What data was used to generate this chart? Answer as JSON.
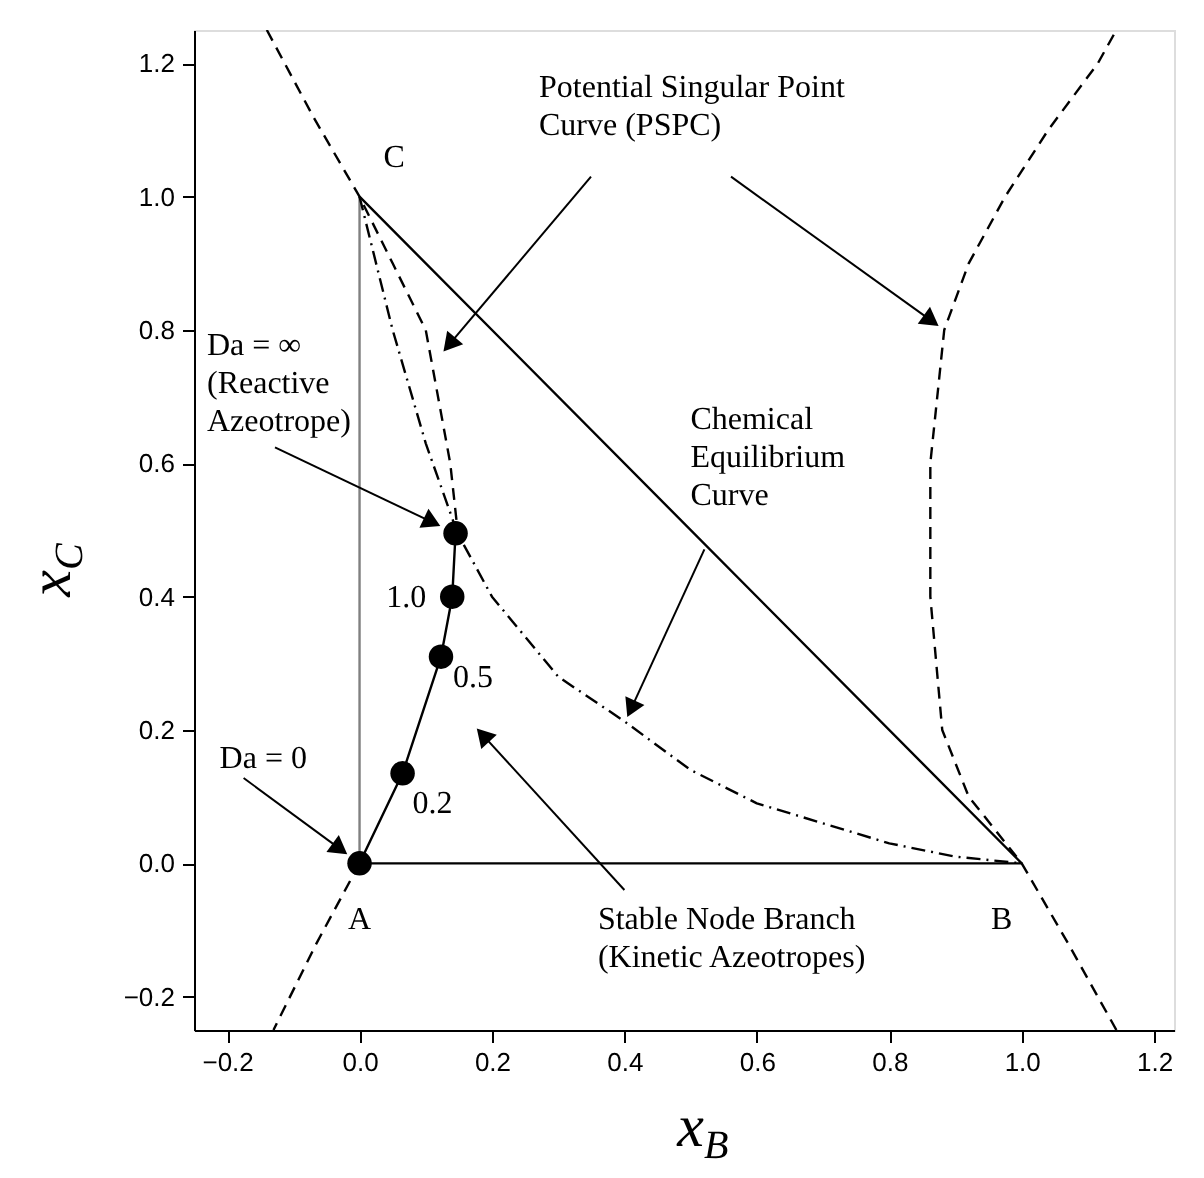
{
  "chart_data": {
    "type": "line",
    "xlabel": "x$_{B}$",
    "ylabel": "x$_{C}$",
    "xlim": [
      -0.25,
      1.23
    ],
    "ylim": [
      -0.25,
      1.25
    ],
    "xticks": [
      -0.2,
      {
        "value": 0,
        "label": "0.0"
      },
      0.2,
      0.4,
      0.6,
      0.8,
      {
        "value": 1,
        "label": "1.0"
      },
      1.2
    ],
    "yticks": [
      -0.2,
      {
        "value": 0,
        "label": "0.0"
      },
      0.2,
      0.4,
      0.6,
      0.8,
      {
        "value": 1,
        "label": "1.0"
      },
      1.2
    ],
    "grid": false,
    "series": [
      {
        "color": "#000000",
        "line_style": "solid",
        "x": [
          0,
          1,
          0
        ],
        "values": [
          0,
          0,
          1
        ]
      },
      {
        "color": "#808080",
        "line_style": "solid",
        "x": [
          0,
          0
        ],
        "values": [
          1,
          0
        ]
      },
      {
        "color": "#000000",
        "line_style": "dashed",
        "x": [
          -0.14,
          -0.07,
          0,
          0.05,
          0.1,
          0.137,
          0.148
        ],
        "values": [
          1.25,
          1.12,
          1.0,
          0.9,
          0.8,
          0.6,
          0.5
        ]
      },
      {
        "color": "#000000",
        "line_style": "dashed",
        "x": [
          0,
          -0.065,
          -0.13
        ],
        "values": [
          0,
          -0.12,
          -0.25
        ]
      },
      {
        "color": "#000000",
        "line_style": "dashed",
        "x": [
          1.143,
          1.07,
          1.0,
          0.92,
          0.88,
          0.862,
          0.862,
          0.883,
          0.92,
          0.975,
          1.04,
          1.115,
          1.143
        ],
        "values": [
          -0.25,
          -0.12,
          0,
          0.1,
          0.2,
          0.4,
          0.6,
          0.8,
          0.9,
          1.0,
          1.1,
          1.2,
          1.25
        ]
      },
      {
        "color": "#000000",
        "line_style": "dashdot",
        "x": [
          0,
          0.05,
          0.1,
          0.148,
          0.2,
          0.3,
          0.4,
          0.5,
          0.6,
          0.7,
          0.8,
          0.9,
          1.0
        ],
        "values": [
          1.0,
          0.8,
          0.63,
          0.495,
          0.4,
          0.28,
          0.213,
          0.14,
          0.09,
          0.06,
          0.03,
          0.01,
          0
        ]
      },
      {
        "color": "#000000",
        "line_style": "solid",
        "marker": "circle",
        "x": [
          0,
          0.065,
          0.123,
          0.14,
          0.145
        ],
        "values": [
          0,
          0.135,
          0.31,
          0.4,
          0.495
        ]
      }
    ],
    "annotations": [
      {
        "text": "C",
        "x": 0,
        "y": 1
      },
      {
        "text": "A",
        "x": 0,
        "y": 0
      },
      {
        "text": "B",
        "x": 1,
        "y": 0
      },
      {
        "text": "Potential Singular Point\nCurve (PSPC)",
        "x": 0.12,
        "y": 0.76
      },
      {
        "text": "Da = ∞\n(Reactive\nAzeotrope)",
        "x": 0.126,
        "y": 0.504
      },
      {
        "text": "1.0",
        "x": 0.14,
        "y": 0.4
      },
      {
        "text": "0.5",
        "x": 0.123,
        "y": 0.31
      },
      {
        "text": "0.2",
        "x": 0.065,
        "y": 0.135
      },
      {
        "text": "Da = 0",
        "x": -0.015,
        "y": 0.011
      },
      {
        "text": "Chemical\nEquilibrium\nCurve",
        "x": 0.4,
        "y": 0.21
      },
      "Stable Node Branch\n(Kinetic Azeotropes)"
    ]
  }
}
